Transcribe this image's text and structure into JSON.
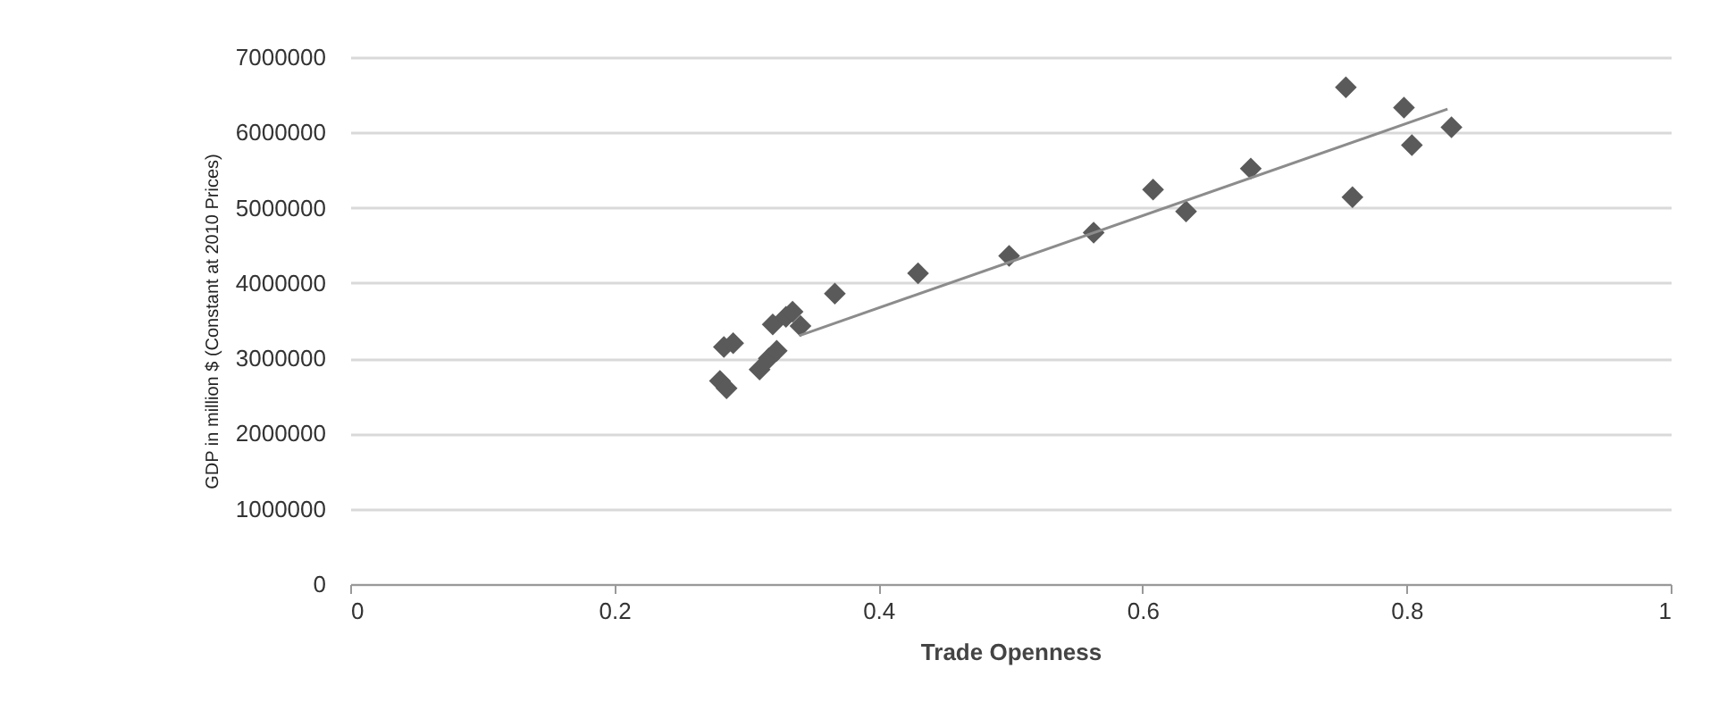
{
  "chart_data": {
    "type": "scatter",
    "xlabel": "Trade Openness",
    "ylabel": "GDP in million $ (Constant at 2010 Prices)",
    "xlim": [
      0,
      1
    ],
    "xticks": [
      0,
      0.2,
      0.4,
      0.6,
      0.8,
      1
    ],
    "ylim": [
      0,
      7000000
    ],
    "yticks": [
      0,
      1000000,
      2000000,
      3000000,
      4000000,
      5000000,
      6000000,
      7000000
    ],
    "grid": "y",
    "series": [
      {
        "type": "scatter",
        "marker": "diamond",
        "color": "#5a5a5a",
        "x": [
          0.28,
          0.285,
          0.283,
          0.29,
          0.31,
          0.317,
          0.32,
          0.323,
          0.33,
          0.335,
          0.341,
          0.367,
          0.43,
          0.499,
          0.563,
          0.608,
          0.633,
          0.682,
          0.754,
          0.759,
          0.798,
          0.804,
          0.834
        ],
        "values": [
          2700000,
          2600000,
          3150000,
          3200000,
          2850000,
          3000000,
          3450000,
          3100000,
          3550000,
          3620000,
          3430000,
          3860000,
          4130000,
          4360000,
          4670000,
          5240000,
          4950000,
          5520000,
          6600000,
          5140000,
          6330000,
          5830000,
          6070000
        ]
      },
      {
        "type": "line",
        "color": "#8c8c8c",
        "x": [
          0.34,
          0.831
        ],
        "values": [
          3300000,
          6310000
        ]
      }
    ]
  }
}
